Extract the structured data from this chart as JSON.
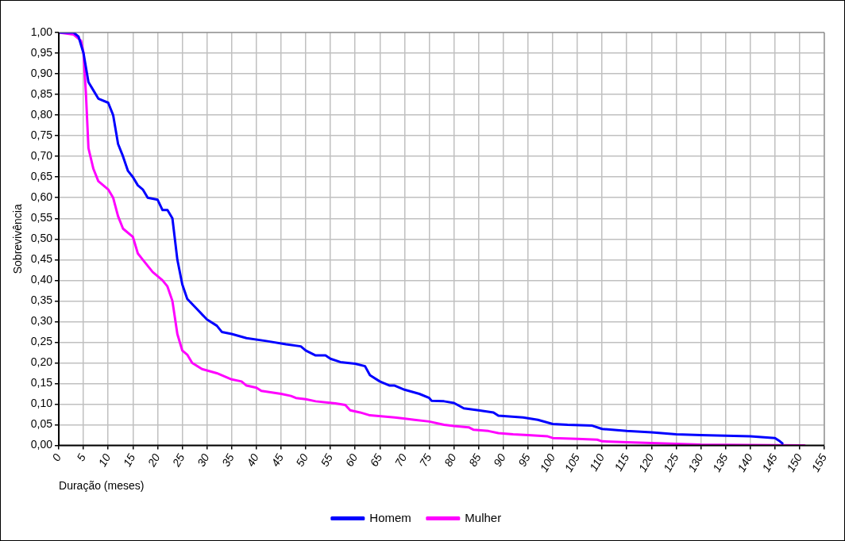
{
  "chart_data": {
    "type": "line",
    "xlabel": "Duração (meses)",
    "ylabel": "Sobrevivência",
    "xlim": [
      0,
      155
    ],
    "xticks": [
      0,
      5,
      10,
      15,
      20,
      25,
      30,
      35,
      40,
      45,
      50,
      55,
      60,
      65,
      70,
      75,
      80,
      85,
      90,
      95,
      100,
      105,
      110,
      115,
      120,
      125,
      130,
      135,
      140,
      145,
      150,
      155
    ],
    "ylim": [
      0,
      1
    ],
    "yticks": [
      {
        "value": 0,
        "label": "0,00"
      },
      {
        "value": 0.05,
        "label": "0,05"
      },
      {
        "value": 0.1,
        "label": "0,10"
      },
      {
        "value": 0.15,
        "label": "0,15"
      },
      {
        "value": 0.2,
        "label": "0,20"
      },
      {
        "value": 0.25,
        "label": "0,25"
      },
      {
        "value": 0.3,
        "label": "0,30"
      },
      {
        "value": 0.35,
        "label": "0,35"
      },
      {
        "value": 0.4,
        "label": "0,40"
      },
      {
        "value": 0.45,
        "label": "0,45"
      },
      {
        "value": 0.5,
        "label": "0,50"
      },
      {
        "value": 0.55,
        "label": "0,55"
      },
      {
        "value": 0.6,
        "label": "0,60"
      },
      {
        "value": 0.65,
        "label": "0,65"
      },
      {
        "value": 0.7,
        "label": "0,70"
      },
      {
        "value": 0.75,
        "label": "0,75"
      },
      {
        "value": 0.8,
        "label": "0,80"
      },
      {
        "value": 0.85,
        "label": "0,85"
      },
      {
        "value": 0.9,
        "label": "0,90"
      },
      {
        "value": 0.95,
        "label": "0,95"
      },
      {
        "value": 1,
        "label": "1,00"
      }
    ],
    "grid": true,
    "legend": "bottom",
    "marker": "none",
    "line_style": "solid",
    "series": [
      {
        "name": "Homem",
        "color": "#0000ff",
        "x": [
          0,
          3,
          4,
          5,
          6,
          7,
          8,
          10,
          11,
          12,
          13,
          14,
          15,
          16,
          17,
          18,
          20,
          21,
          22,
          23,
          24,
          25,
          26,
          28,
          30,
          32,
          33,
          35,
          38,
          42,
          46,
          49,
          50,
          52,
          54,
          55,
          57,
          60,
          62,
          63,
          65,
          67,
          68,
          70,
          73,
          75,
          75.5,
          78,
          80,
          82,
          85,
          88,
          89,
          94,
          97,
          100,
          103,
          108,
          110,
          115,
          120,
          125,
          130,
          140,
          145,
          146,
          146.5
        ],
        "values": [
          1,
          1,
          0.99,
          0.95,
          0.88,
          0.86,
          0.84,
          0.83,
          0.8,
          0.73,
          0.7,
          0.665,
          0.65,
          0.63,
          0.62,
          0.6,
          0.595,
          0.57,
          0.57,
          0.55,
          0.45,
          0.39,
          0.355,
          0.33,
          0.305,
          0.29,
          0.275,
          0.27,
          0.26,
          0.253,
          0.245,
          0.24,
          0.23,
          0.218,
          0.218,
          0.21,
          0.202,
          0.198,
          0.192,
          0.17,
          0.155,
          0.145,
          0.145,
          0.135,
          0.125,
          0.115,
          0.108,
          0.107,
          0.103,
          0.09,
          0.085,
          0.08,
          0.072,
          0.068,
          0.062,
          0.052,
          0.05,
          0.048,
          0.04,
          0.035,
          0.032,
          0.027,
          0.025,
          0.022,
          0.018,
          0.01,
          0.005
        ]
      },
      {
        "name": "Mulher",
        "color": "#ff00ff",
        "x": [
          0,
          3,
          4.5,
          5,
          5.5,
          6,
          7,
          8,
          10,
          11,
          12,
          13,
          15,
          16,
          17,
          19,
          21,
          22,
          23,
          24,
          25,
          26,
          27,
          29,
          32,
          35,
          37,
          38,
          40,
          41,
          45,
          47,
          48,
          50,
          52,
          56,
          58,
          59,
          61,
          63,
          68,
          72,
          75,
          78,
          80,
          83,
          84,
          87,
          89,
          92,
          95,
          99,
          100,
          105,
          109,
          110,
          115,
          120,
          125,
          130,
          140,
          151
        ],
        "values": [
          1,
          0.995,
          0.98,
          0.95,
          0.85,
          0.72,
          0.67,
          0.64,
          0.62,
          0.6,
          0.555,
          0.525,
          0.505,
          0.465,
          0.45,
          0.42,
          0.4,
          0.385,
          0.35,
          0.27,
          0.23,
          0.22,
          0.2,
          0.185,
          0.175,
          0.16,
          0.155,
          0.145,
          0.14,
          0.132,
          0.125,
          0.12,
          0.115,
          0.112,
          0.107,
          0.102,
          0.098,
          0.085,
          0.08,
          0.073,
          0.068,
          0.062,
          0.058,
          0.05,
          0.047,
          0.044,
          0.038,
          0.035,
          0.03,
          0.027,
          0.025,
          0.022,
          0.018,
          0.016,
          0.014,
          0.01,
          0.008,
          0.006,
          0.004,
          0.002,
          0.001,
          0
        ]
      }
    ]
  }
}
